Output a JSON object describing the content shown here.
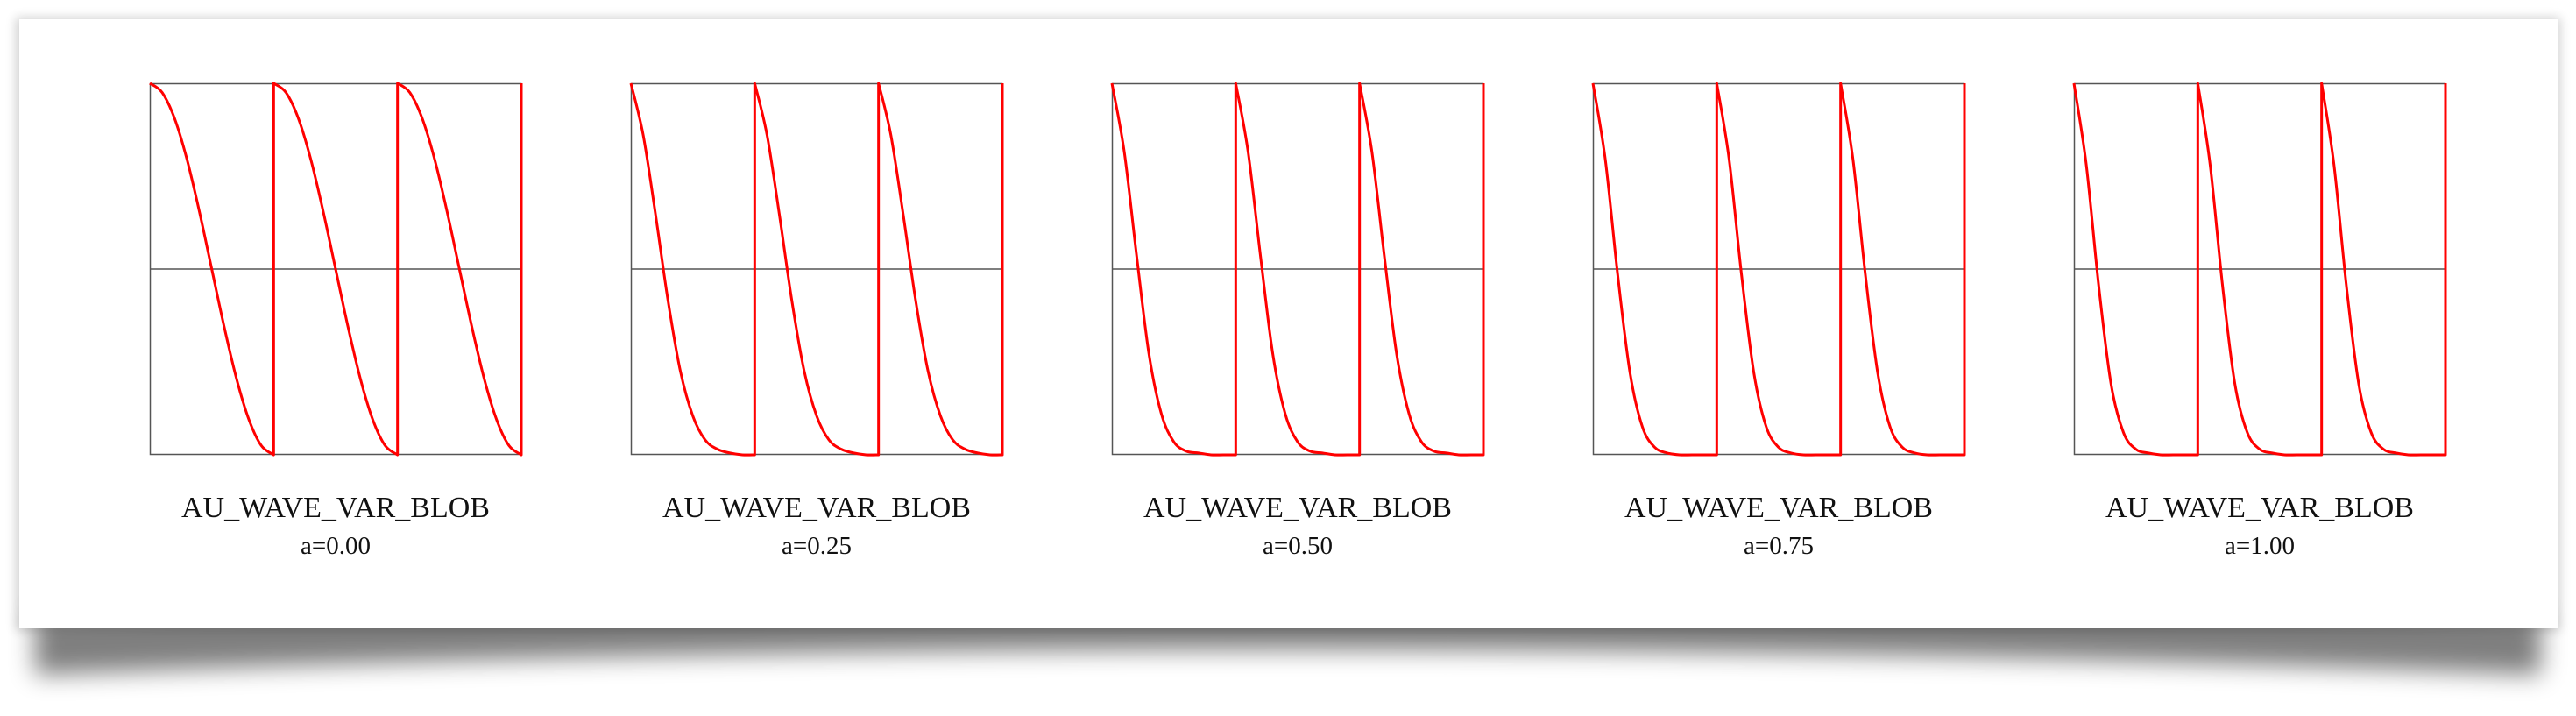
{
  "chart_data": [
    {
      "type": "line",
      "title": "AU_WAVE_VAR_BLOB",
      "subtitle": "a=0.00",
      "param_a": 0.0,
      "xlim": [
        0,
        3
      ],
      "ylim": [
        -1,
        1
      ],
      "grid": false,
      "zero_line": true,
      "series": [
        {
          "x": [
            0,
            0.1,
            0.2,
            0.3,
            0.4,
            0.5,
            0.6,
            0.7,
            0.8,
            0.9,
            1.0
          ],
          "y": [
            1.0,
            0.95,
            0.81,
            0.59,
            0.31,
            0.0,
            -0.31,
            -0.59,
            -0.81,
            -0.95,
            -1.0
          ],
          "color": "#ff0000",
          "periods": 3
        }
      ]
    },
    {
      "type": "line",
      "title": "AU_WAVE_VAR_BLOB",
      "subtitle": "a=0.25",
      "param_a": 0.25,
      "xlim": [
        0,
        3
      ],
      "ylim": [
        -1,
        1
      ],
      "grid": false,
      "zero_line": true,
      "series": [
        {
          "x": [
            0,
            0.1,
            0.2,
            0.3,
            0.4,
            0.5,
            0.6,
            0.7,
            0.8,
            0.9,
            1.0
          ],
          "y": [
            1.0,
            0.72,
            0.29,
            -0.17,
            -0.55,
            -0.79,
            -0.92,
            -0.97,
            -0.99,
            -1.0,
            -1.0
          ],
          "color": "#ff0000",
          "periods": 3
        }
      ]
    },
    {
      "type": "line",
      "title": "AU_WAVE_VAR_BLOB",
      "subtitle": "a=0.50",
      "param_a": 0.5,
      "xlim": [
        0,
        3
      ],
      "ylim": [
        -1,
        1
      ],
      "grid": false,
      "zero_line": true,
      "series": [
        {
          "x": [
            0,
            0.1,
            0.2,
            0.3,
            0.4,
            0.5,
            0.6,
            0.7,
            0.8,
            0.9,
            1.0
          ],
          "y": [
            1.0,
            0.63,
            0.07,
            -0.46,
            -0.78,
            -0.93,
            -0.98,
            -0.99,
            -1.0,
            -1.0,
            -1.0
          ],
          "color": "#ff0000",
          "periods": 3
        }
      ]
    },
    {
      "type": "line",
      "title": "AU_WAVE_VAR_BLOB",
      "subtitle": "a=0.75",
      "param_a": 0.75,
      "xlim": [
        0,
        3
      ],
      "ylim": [
        -1,
        1
      ],
      "grid": false,
      "zero_line": true,
      "series": [
        {
          "x": [
            0,
            0.1,
            0.2,
            0.3,
            0.4,
            0.5,
            0.6,
            0.7,
            0.8,
            0.9,
            1.0
          ],
          "y": [
            1.0,
            0.59,
            -0.03,
            -0.56,
            -0.85,
            -0.96,
            -0.99,
            -1.0,
            -1.0,
            -1.0,
            -1.0
          ],
          "color": "#ff0000",
          "periods": 3
        }
      ]
    },
    {
      "type": "line",
      "title": "AU_WAVE_VAR_BLOB",
      "subtitle": "a=1.00",
      "param_a": 1.0,
      "xlim": [
        0,
        3
      ],
      "ylim": [
        -1,
        1
      ],
      "grid": false,
      "zero_line": true,
      "series": [
        {
          "x": [
            0,
            0.1,
            0.2,
            0.3,
            0.4,
            0.5,
            0.6,
            0.7,
            0.8,
            0.9,
            1.0
          ],
          "y": [
            1.0,
            0.56,
            -0.09,
            -0.62,
            -0.88,
            -0.97,
            -0.99,
            -1.0,
            -1.0,
            -1.0,
            -1.0
          ],
          "color": "#ff0000",
          "periods": 3
        }
      ]
    }
  ],
  "colors": {
    "curve": "#ff0000",
    "frame": "#555555",
    "axis": "#555555",
    "text": "#111111"
  }
}
